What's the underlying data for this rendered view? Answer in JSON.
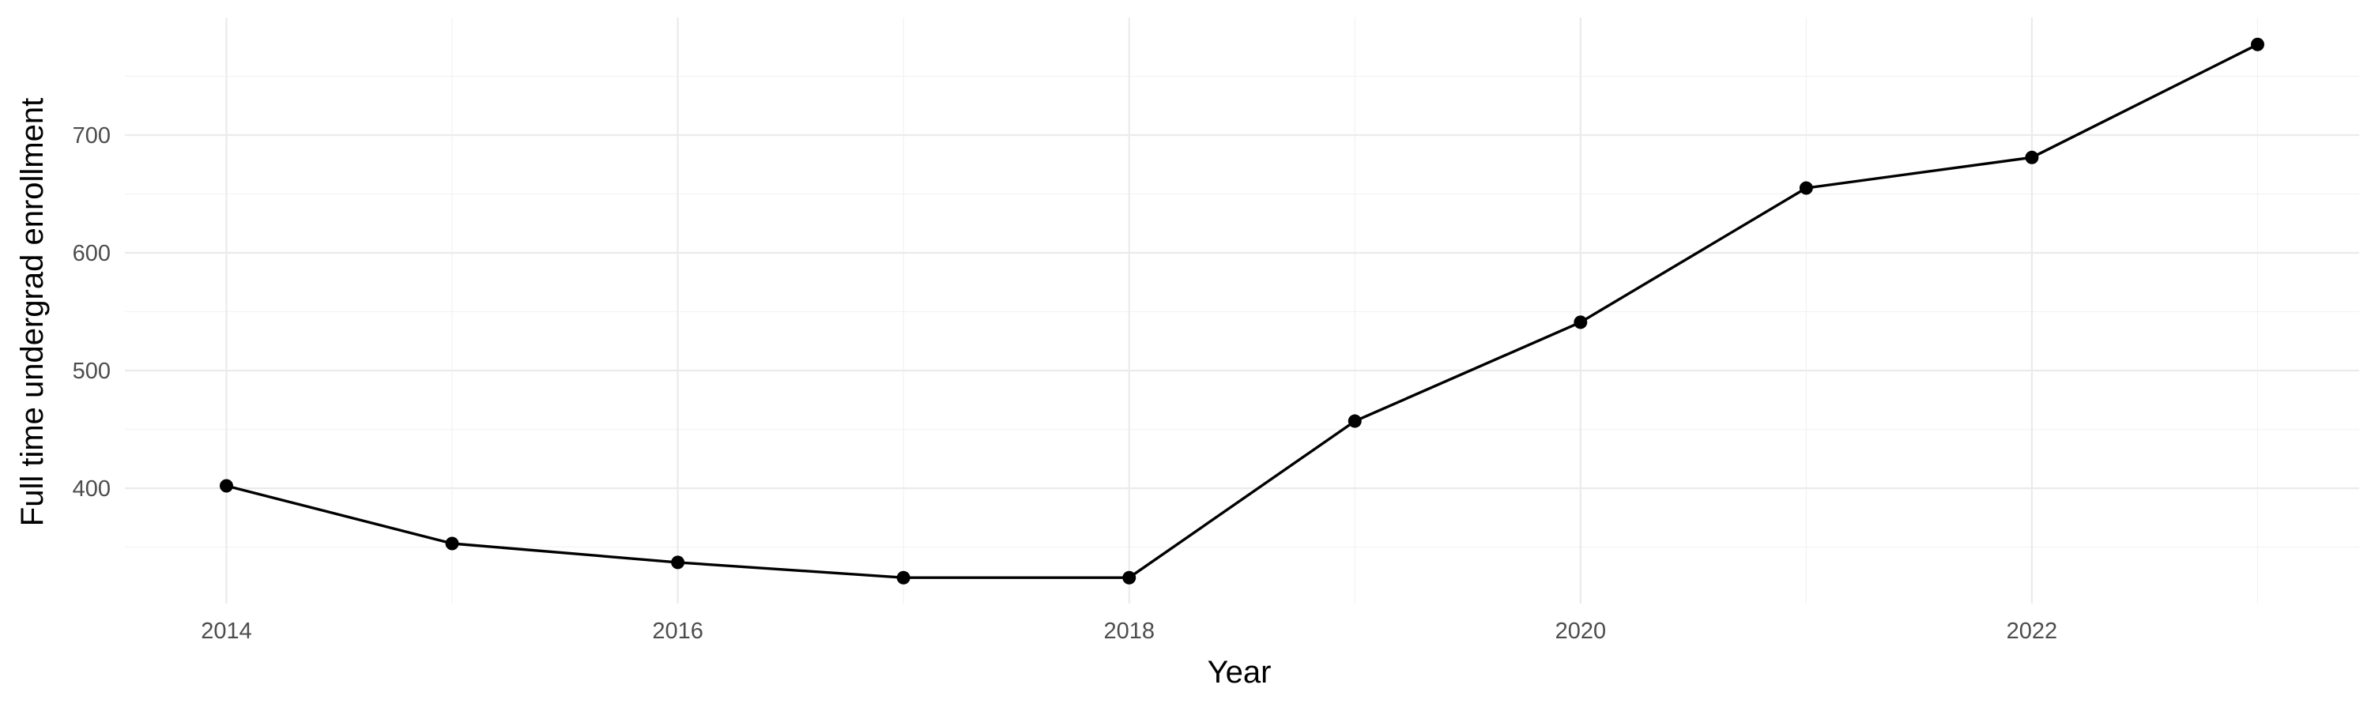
{
  "chart_data": {
    "type": "line",
    "title": "",
    "xlabel": "Year",
    "ylabel": "Full time undergrad enrollment",
    "x": [
      2014,
      2015,
      2016,
      2017,
      2018,
      2019,
      2020,
      2021,
      2022,
      2023
    ],
    "series": [
      {
        "values": [
          402,
          353,
          337,
          324,
          324,
          457,
          541,
          655,
          681,
          777
        ]
      }
    ],
    "x_ticks": [
      "2014",
      "2016",
      "2018",
      "2020",
      "2022"
    ],
    "y_ticks": [
      "400",
      "500",
      "600",
      "700"
    ],
    "xlim": [
      2013.55,
      2023.45
    ],
    "ylim": [
      302,
      800
    ],
    "grid": true,
    "legend": "none",
    "colors": {
      "line": "#000000",
      "grid": "#ebebeb",
      "tick_text": "#4d4d4d"
    }
  }
}
